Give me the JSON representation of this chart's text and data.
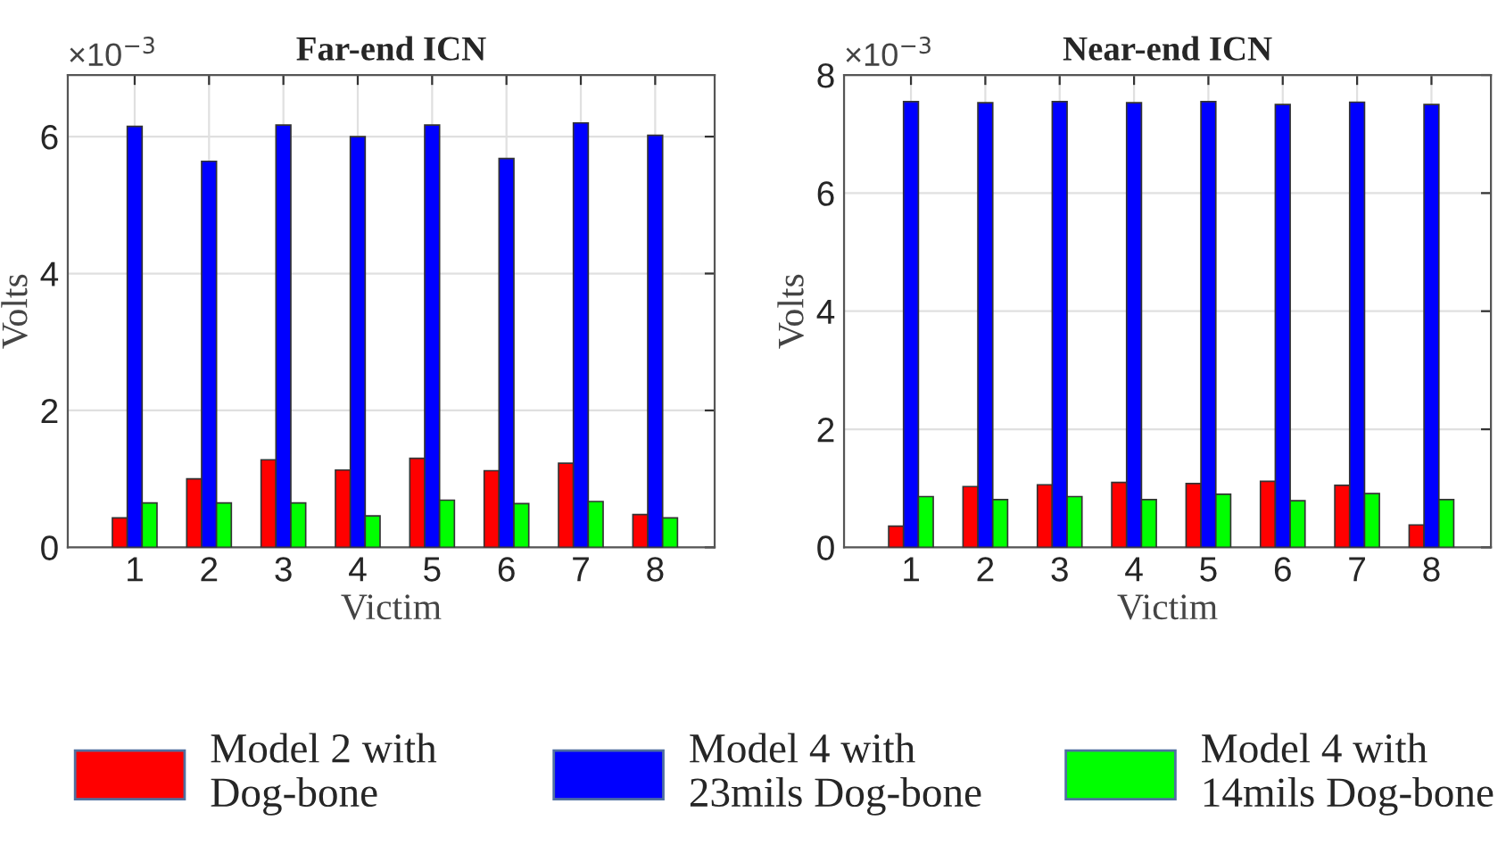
{
  "chart_data": [
    {
      "type": "bar",
      "title": "Far-end ICN",
      "xlabel": "Victim",
      "ylabel": "Volts",
      "annotations": [
        "×10$^{−3}$"
      ],
      "categories": [
        "1",
        "2",
        "3",
        "4",
        "5",
        "6",
        "7",
        "8"
      ],
      "series": [
        {
          "name": "Model 2 with\nDog-bone",
          "color": "#ff0000",
          "values": [
            0.43,
            1.0,
            1.28,
            1.13,
            1.3,
            1.12,
            1.23,
            0.48
          ]
        },
        {
          "name": "Model 4 with\n23mils Dog-bone",
          "color": "#0000ff",
          "values": [
            6.15,
            5.64,
            6.17,
            6.0,
            6.17,
            5.68,
            6.2,
            6.02
          ]
        },
        {
          "name": "Model 4 with\n14mils Dog-bone",
          "color": "#00ff00",
          "values": [
            0.65,
            0.65,
            0.65,
            0.46,
            0.69,
            0.64,
            0.67,
            0.43
          ]
        }
      ],
      "ylim": [
        0,
        6.9
      ],
      "yticks": [
        0,
        2,
        4,
        6
      ],
      "grid": true,
      "legend": "bottom"
    },
    {
      "type": "bar",
      "title": "Near-end ICN",
      "xlabel": "Victim",
      "ylabel": "Volts",
      "annotations": [
        "×10$^{−3}$"
      ],
      "categories": [
        "1",
        "2",
        "3",
        "4",
        "5",
        "6",
        "7",
        "8"
      ],
      "series": [
        {
          "color": "#ff0000",
          "values": [
            0.36,
            1.03,
            1.06,
            1.1,
            1.08,
            1.12,
            1.05,
            0.38
          ]
        },
        {
          "color": "#0000ff",
          "values": [
            7.55,
            7.53,
            7.55,
            7.53,
            7.55,
            7.5,
            7.54,
            7.5
          ]
        },
        {
          "color": "#00ff00",
          "values": [
            0.86,
            0.81,
            0.86,
            0.81,
            0.9,
            0.79,
            0.91,
            0.81
          ]
        }
      ],
      "ylim": [
        0,
        8
      ],
      "yticks": [
        0,
        2,
        4,
        6,
        8
      ],
      "grid": true
    }
  ]
}
